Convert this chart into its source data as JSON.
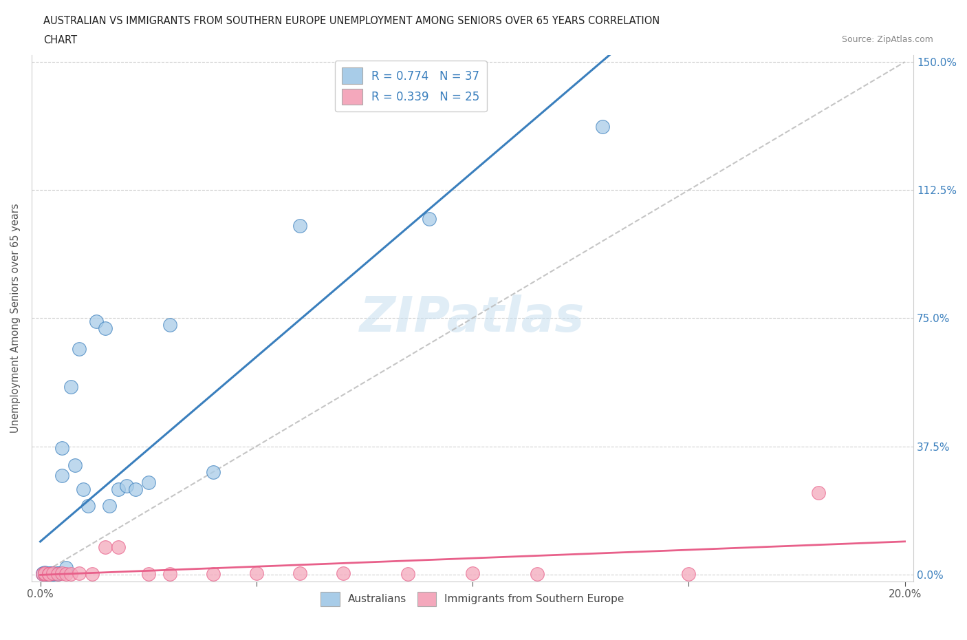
{
  "title_line1": "AUSTRALIAN VS IMMIGRANTS FROM SOUTHERN EUROPE UNEMPLOYMENT AMONG SENIORS OVER 65 YEARS CORRELATION",
  "title_line2": "CHART",
  "source": "Source: ZipAtlas.com",
  "ylabel": "Unemployment Among Seniors over 65 years",
  "right_yticklabels": [
    "0.0%",
    "37.5%",
    "75.0%",
    "112.5%",
    "150.0%"
  ],
  "blue_legend_r": "R = 0.774",
  "blue_legend_n": "N = 37",
  "pink_legend_r": "R = 0.339",
  "pink_legend_n": "N = 25",
  "legend_label_blue": "Australians",
  "legend_label_pink": "Immigrants from Southern Europe",
  "blue_color": "#a8cce8",
  "pink_color": "#f4a8bc",
  "blue_line_color": "#3a7fbd",
  "pink_line_color": "#e8608a",
  "diag_color": "#bbbbbb",
  "watermark": "ZIPatlas",
  "xmin": 0.0,
  "xmax": 0.2,
  "ymin": 0.0,
  "ymax": 1.5,
  "aus_x": [
    0.0005,
    0.0005,
    0.001,
    0.001,
    0.001,
    0.0015,
    0.0015,
    0.002,
    0.002,
    0.002,
    0.0025,
    0.003,
    0.003,
    0.003,
    0.004,
    0.004,
    0.004,
    0.005,
    0.005,
    0.006,
    0.007,
    0.008,
    0.009,
    0.01,
    0.011,
    0.013,
    0.015,
    0.016,
    0.018,
    0.02,
    0.022,
    0.025,
    0.03,
    0.04,
    0.06,
    0.09,
    0.13
  ],
  "aus_y": [
    0.002,
    0.003,
    0.001,
    0.003,
    0.005,
    0.001,
    0.002,
    0.001,
    0.002,
    0.004,
    0.003,
    0.001,
    0.002,
    0.003,
    0.002,
    0.003,
    0.004,
    0.37,
    0.29,
    0.02,
    0.55,
    0.32,
    0.66,
    0.25,
    0.2,
    0.74,
    0.72,
    0.2,
    0.25,
    0.26,
    0.25,
    0.27,
    0.73,
    0.3,
    1.02,
    1.04,
    1.31
  ],
  "imm_x": [
    0.0005,
    0.001,
    0.001,
    0.002,
    0.002,
    0.003,
    0.004,
    0.005,
    0.006,
    0.007,
    0.009,
    0.012,
    0.015,
    0.018,
    0.025,
    0.03,
    0.04,
    0.05,
    0.06,
    0.07,
    0.085,
    0.1,
    0.115,
    0.15,
    0.18
  ],
  "imm_y": [
    0.001,
    0.002,
    0.003,
    0.001,
    0.002,
    0.003,
    0.002,
    0.003,
    0.002,
    0.001,
    0.003,
    0.002,
    0.08,
    0.08,
    0.002,
    0.001,
    0.002,
    0.003,
    0.003,
    0.003,
    0.002,
    0.003,
    0.002,
    0.002,
    0.24
  ],
  "blue_slope": 13.0,
  "blue_intercept": -0.03,
  "pink_slope": 1.0,
  "pink_intercept": 0.005
}
